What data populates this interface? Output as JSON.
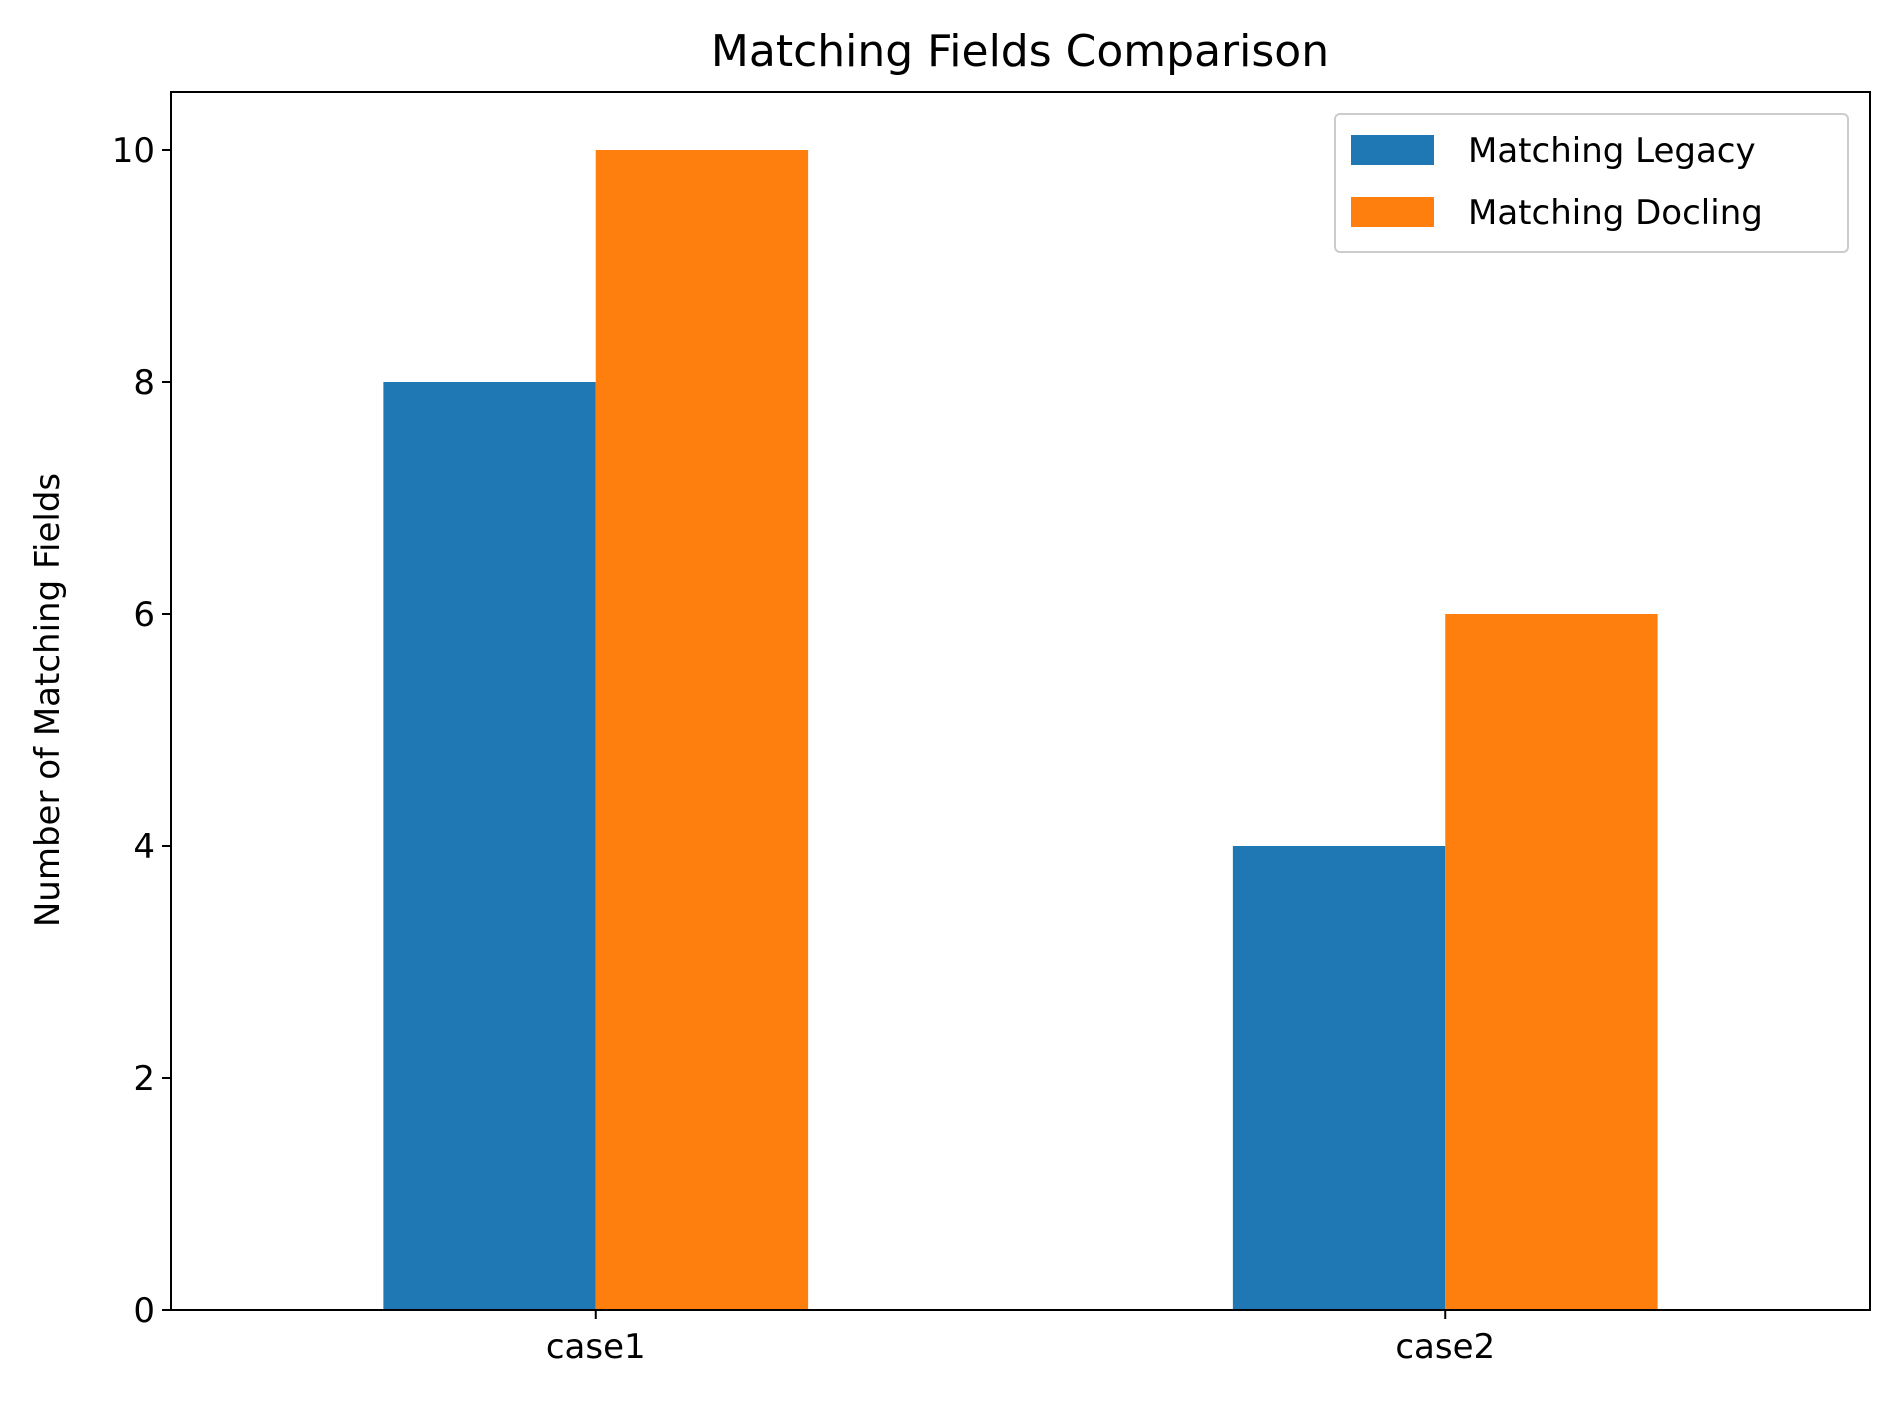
{
  "chart_data": {
    "type": "bar",
    "title": "Matching Fields Comparison",
    "xlabel": "",
    "ylabel": "Number of Matching Fields",
    "categories": [
      "case1",
      "case2"
    ],
    "series": [
      {
        "name": "Matching Legacy",
        "values": [
          8,
          4
        ],
        "color": "#1f77b4"
      },
      {
        "name": "Matching Docling",
        "values": [
          10,
          6
        ],
        "color": "#ff7f0e"
      }
    ],
    "ylim": [
      0,
      10.5
    ],
    "yticks": [
      0,
      2,
      4,
      6,
      8,
      10
    ],
    "grid": false,
    "legend_position": "top-right"
  }
}
